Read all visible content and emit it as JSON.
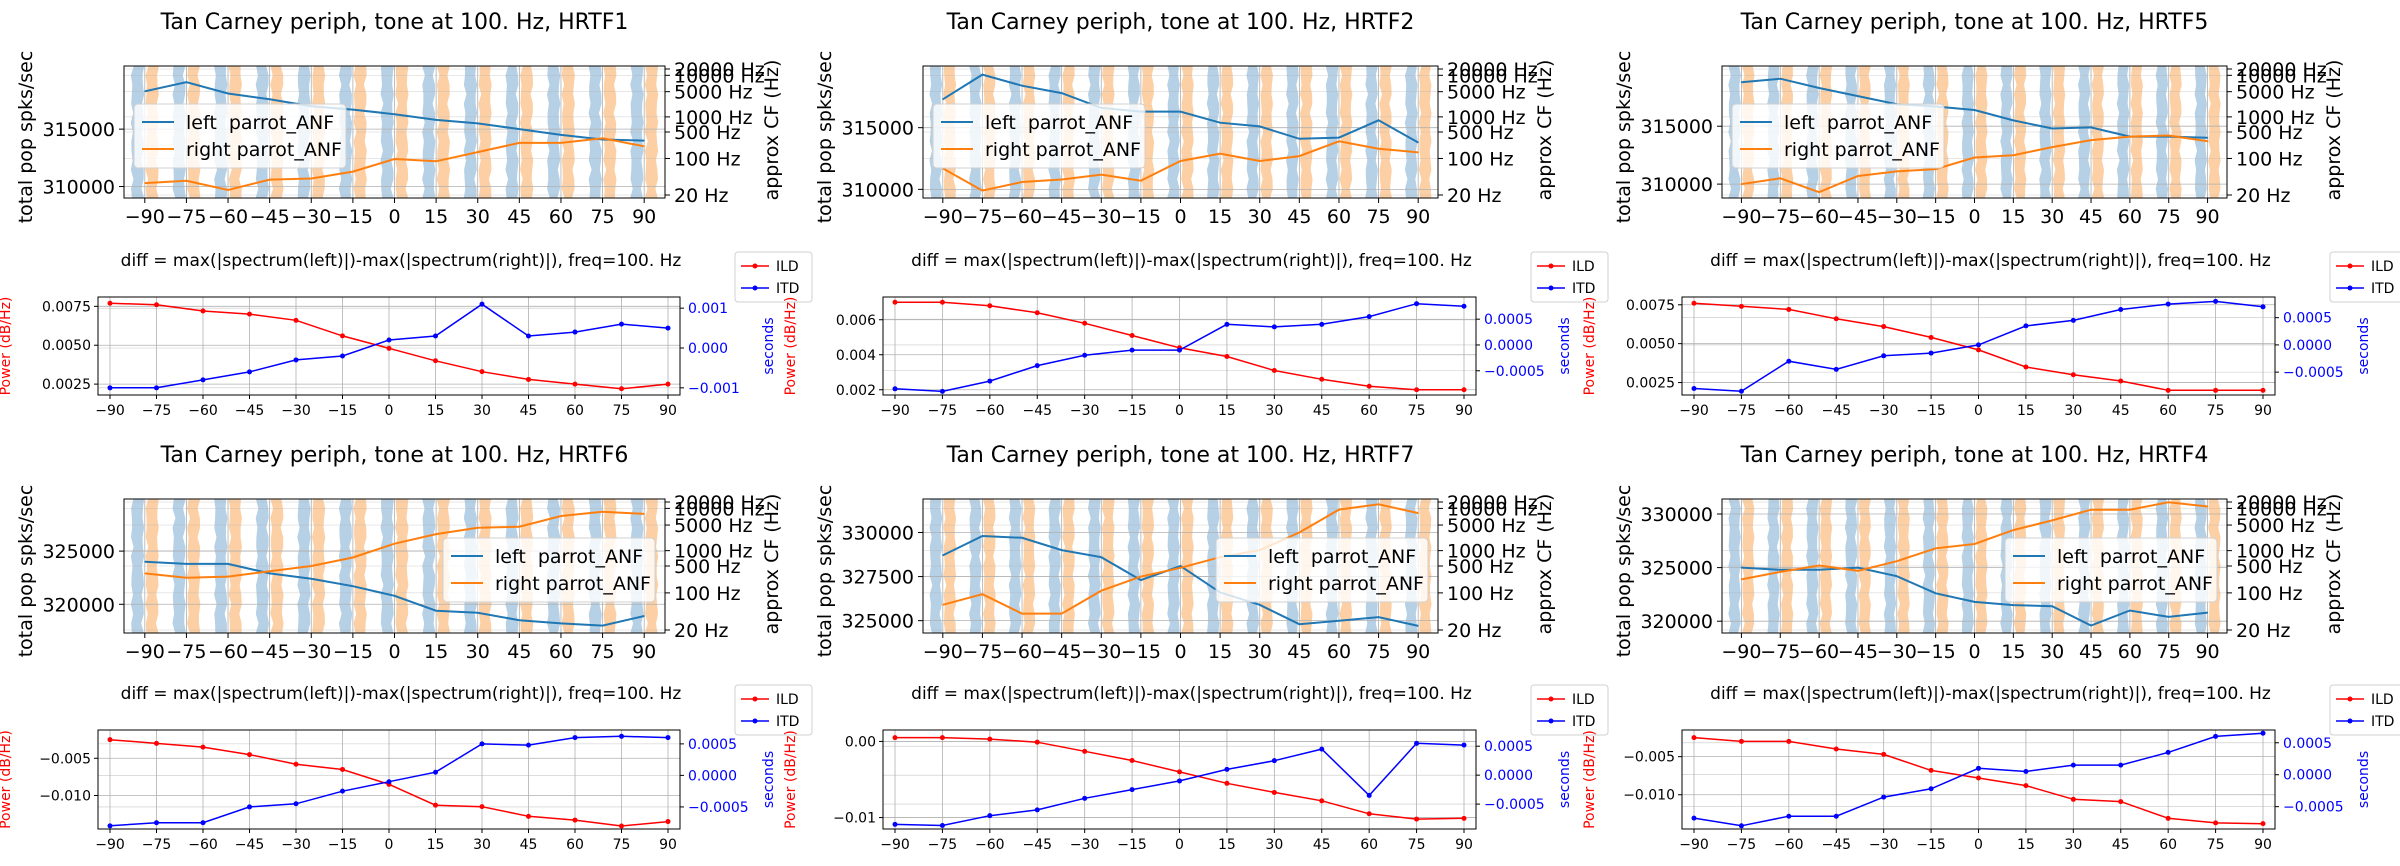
{
  "figure": {
    "top_title_suffix": "",
    "diff_title": "diff = max(|spectrum(left)|)-max(|spectrum(right)|), freq=100. Hz"
  },
  "colors": {
    "left": "#1f77b4",
    "right": "#ff7f0e",
    "ild": "#ff0000",
    "itd": "#0000ff",
    "violin_left": "#a9c8e0",
    "violin_right": "#fcc894",
    "grid": "#b0b0b0"
  },
  "chart_data": [
    {
      "type": "line",
      "title": "Tan Carney periph, tone at 100. Hz, HRTF1",
      "ylabel": "total pop spks/sec",
      "y2label": "approx CF (Hz)",
      "x": [
        -90,
        -75,
        -60,
        -45,
        -30,
        -15,
        0,
        15,
        30,
        45,
        60,
        75,
        90
      ],
      "ylim": [
        309000,
        320500
      ],
      "yticks": [
        310000,
        315000
      ],
      "y2ticks": [
        "20000 Hz",
        "10000 Hz",
        "5000 Hz",
        "1000 Hz",
        "500 Hz",
        "100 Hz",
        "20 Hz"
      ],
      "legend": "center-left",
      "series": [
        {
          "name": "left  parrot_ANF",
          "values": [
            318300,
            319100,
            318100,
            317600,
            317000,
            316700,
            316300,
            315800,
            315500,
            315000,
            314500,
            314100,
            314000
          ]
        },
        {
          "name": "right parrot_ANF",
          "values": [
            310300,
            310500,
            309700,
            310600,
            310700,
            311300,
            312400,
            312200,
            313000,
            313800,
            313800,
            314200,
            313500
          ]
        }
      ]
    },
    {
      "type": "line",
      "title": "diff = max(|spectrum(left)|)-max(|spectrum(right)|), freq=100. Hz",
      "ylabel": "Power (dB/Hz)",
      "y2label": "seconds",
      "x": [
        -90,
        -75,
        -60,
        -45,
        -30,
        -15,
        0,
        15,
        30,
        45,
        60,
        75,
        90
      ],
      "ylim": [
        0.0018,
        0.0081
      ],
      "yticks": [
        0.0025,
        0.005,
        0.0075
      ],
      "ytick_labels": [
        "0.0025",
        "0.0050",
        "0.0075"
      ],
      "y2lim": [
        -0.00118,
        0.00128
      ],
      "y2ticks": [
        -0.001,
        0,
        0.001
      ],
      "y2tick_labels": [
        "-0.001",
        "0.000",
        "0.001"
      ],
      "legend": "outside-right",
      "series": [
        {
          "name": "ILD",
          "values": [
            0.0077,
            0.0076,
            0.0072,
            0.007,
            0.0066,
            0.0056,
            0.0048,
            0.004,
            0.0033,
            0.0028,
            0.0025,
            0.0022,
            0.0025
          ]
        },
        {
          "name": "ITD",
          "values": [
            -0.001,
            -0.001,
            -0.0008,
            -0.0006,
            -0.0003,
            -0.0002,
            0.0002,
            0.0003,
            0.0011,
            0.0003,
            0.0004,
            0.0006,
            0.0005
          ]
        }
      ]
    },
    {
      "type": "line",
      "title": "Tan Carney periph, tone at 100. Hz, HRTF2",
      "ylabel": "total pop spks/sec",
      "y2label": "approx CF (Hz)",
      "x": [
        -90,
        -75,
        -60,
        -45,
        -30,
        -15,
        0,
        15,
        30,
        45,
        60,
        75,
        90
      ],
      "ylim": [
        309300,
        320000
      ],
      "yticks": [
        310000,
        315000
      ],
      "y2ticks": [
        "20000 Hz",
        "10000 Hz",
        "5000 Hz",
        "1000 Hz",
        "500 Hz",
        "100 Hz",
        "20 Hz"
      ],
      "legend": "center-left",
      "series": [
        {
          "name": "left  parrot_ANF",
          "values": [
            317300,
            319300,
            318400,
            317800,
            316600,
            316300,
            316300,
            315400,
            315100,
            314100,
            314200,
            315600,
            313800
          ]
        },
        {
          "name": "right parrot_ANF",
          "values": [
            311700,
            309900,
            310600,
            310800,
            311200,
            310700,
            312300,
            312900,
            312300,
            312700,
            313900,
            313300,
            313000
          ]
        }
      ]
    },
    {
      "type": "line",
      "title": "diff = max(|spectrum(left)|)-max(|spectrum(right)|), freq=100. Hz",
      "ylabel": "Power (dB/Hz)",
      "y2label": "seconds",
      "x": [
        -90,
        -75,
        -60,
        -45,
        -30,
        -15,
        0,
        15,
        30,
        45,
        60,
        75,
        90
      ],
      "ylim": [
        0.0017,
        0.0073
      ],
      "yticks": [
        0.002,
        0.004,
        0.006
      ],
      "ytick_labels": [
        "0.002",
        "0.004",
        "0.006"
      ],
      "y2lim": [
        -0.00097,
        0.00093
      ],
      "y2ticks": [
        -0.0005,
        0,
        0.0005
      ],
      "y2tick_labels": [
        "-0.0005",
        "0.0000",
        "0.0005"
      ],
      "legend": "outside-right",
      "series": [
        {
          "name": "ILD",
          "values": [
            0.007,
            0.007,
            0.0068,
            0.0064,
            0.0058,
            0.0051,
            0.0044,
            0.0039,
            0.0031,
            0.0026,
            0.0022,
            0.002,
            0.002
          ]
        },
        {
          "name": "ITD",
          "values": [
            -0.00085,
            -0.0009,
            -0.0007,
            -0.0004,
            -0.0002,
            -0.0001,
            -0.0001,
            0.0004,
            0.00035,
            0.0004,
            0.00055,
            0.0008,
            0.00075
          ]
        }
      ]
    },
    {
      "type": "line",
      "title": "Tan Carney periph, tone at 100. Hz, HRTF5",
      "ylabel": "total pop spks/sec",
      "y2label": "approx CF (Hz)",
      "x": [
        -90,
        -75,
        -60,
        -45,
        -30,
        -15,
        0,
        15,
        30,
        45,
        60,
        75,
        90
      ],
      "ylim": [
        308800,
        320200
      ],
      "yticks": [
        310000,
        315000
      ],
      "y2ticks": [
        "20000 Hz",
        "10000 Hz",
        "5000 Hz",
        "1000 Hz",
        "500 Hz",
        "100 Hz",
        "20 Hz"
      ],
      "legend": "center-left",
      "series": [
        {
          "name": "left  parrot_ANF",
          "values": [
            318800,
            319100,
            318300,
            317600,
            316900,
            316700,
            316400,
            315500,
            314800,
            314900,
            314100,
            314100,
            314000
          ]
        },
        {
          "name": "right parrot_ANF",
          "values": [
            310000,
            310500,
            309300,
            310700,
            311100,
            311300,
            312300,
            312500,
            313200,
            313800,
            314100,
            314200,
            313700
          ]
        }
      ]
    },
    {
      "type": "line",
      "title": "diff = max(|spectrum(left)|)-max(|spectrum(right)|), freq=100. Hz",
      "ylabel": "Power (dB/Hz)",
      "y2label": "seconds",
      "x": [
        -90,
        -75,
        -60,
        -45,
        -30,
        -15,
        0,
        15,
        30,
        45,
        60,
        75,
        90
      ],
      "ylim": [
        0.0017,
        0.008
      ],
      "yticks": [
        0.0025,
        0.005,
        0.0075
      ],
      "ytick_labels": [
        "0.0025",
        "0.0050",
        "0.0075"
      ],
      "y2lim": [
        -0.00092,
        0.00088
      ],
      "y2ticks": [
        -0.0005,
        0,
        0.0005
      ],
      "y2tick_labels": [
        "-0.0005",
        "0.0000",
        "0.0005"
      ],
      "legend": "outside-right",
      "series": [
        {
          "name": "ILD",
          "values": [
            0.0076,
            0.0074,
            0.0072,
            0.0066,
            0.0061,
            0.0054,
            0.0046,
            0.0035,
            0.003,
            0.0026,
            0.002,
            0.002,
            0.002
          ]
        },
        {
          "name": "ITD",
          "values": [
            -0.0008,
            -0.00085,
            -0.0003,
            -0.00045,
            -0.0002,
            -0.00015,
            0.0,
            0.00035,
            0.00045,
            0.00065,
            0.00075,
            0.0008,
            0.0007
          ]
        }
      ]
    },
    {
      "type": "line",
      "title": "Tan Carney periph, tone at 100. Hz, HRTF6",
      "ylabel": "total pop spks/sec",
      "y2label": "approx CF (Hz)",
      "x": [
        -90,
        -75,
        -60,
        -45,
        -30,
        -15,
        0,
        15,
        30,
        45,
        60,
        75,
        90
      ],
      "ylim": [
        317300,
        329900
      ],
      "yticks": [
        320000,
        325000
      ],
      "y2ticks": [
        "20000 Hz",
        "10000 Hz",
        "5000 Hz",
        "1000 Hz",
        "500 Hz",
        "100 Hz",
        "20 Hz"
      ],
      "legend": "center-right",
      "series": [
        {
          "name": "left  parrot_ANF",
          "values": [
            324000,
            323800,
            323800,
            322900,
            322400,
            321700,
            320800,
            319400,
            319200,
            318500,
            318200,
            318000,
            318900
          ]
        },
        {
          "name": "right parrot_ANF",
          "values": [
            322900,
            322500,
            322600,
            323100,
            323600,
            324400,
            325700,
            326600,
            327200,
            327300,
            328300,
            328700,
            328500
          ]
        }
      ]
    },
    {
      "type": "line",
      "title": "diff = max(|spectrum(left)|)-max(|spectrum(right)|), freq=100. Hz",
      "ylabel": "Power (dB/Hz)",
      "y2label": "seconds",
      "x": [
        -90,
        -75,
        -60,
        -45,
        -30,
        -15,
        0,
        15,
        30,
        45,
        60,
        75,
        90
      ],
      "ylim": [
        -0.0145,
        -0.0012
      ],
      "yticks": [
        -0.01,
        -0.005
      ],
      "ytick_labels": [
        "-0.010",
        "-0.005"
      ],
      "y2lim": [
        -0.00085,
        0.00072
      ],
      "y2ticks": [
        -0.0005,
        0,
        0.0005
      ],
      "y2tick_labels": [
        "-0.0005",
        "0.0000",
        "0.0005"
      ],
      "legend": "outside-right",
      "series": [
        {
          "name": "ILD",
          "values": [
            -0.0025,
            -0.003,
            -0.0035,
            -0.0045,
            -0.0058,
            -0.0065,
            -0.0085,
            -0.0113,
            -0.0115,
            -0.0128,
            -0.0133,
            -0.0141,
            -0.0135
          ]
        },
        {
          "name": "ITD",
          "values": [
            -0.0008,
            -0.00075,
            -0.00075,
            -0.0005,
            -0.00045,
            -0.00025,
            -0.0001,
            5e-05,
            0.0005,
            0.00048,
            0.0006,
            0.00062,
            0.0006
          ]
        }
      ]
    },
    {
      "type": "line",
      "title": "Tan Carney periph, tone at 100. Hz, HRTF7",
      "ylabel": "total pop spks/sec",
      "y2label": "approx CF (Hz)",
      "x": [
        -90,
        -75,
        -60,
        -45,
        -30,
        -15,
        0,
        15,
        30,
        45,
        60,
        75,
        90
      ],
      "ylim": [
        324300,
        331900
      ],
      "yticks": [
        325000,
        327500,
        330000
      ],
      "y2ticks": [
        "20000 Hz",
        "10000 Hz",
        "5000 Hz",
        "1000 Hz",
        "500 Hz",
        "100 Hz",
        "20 Hz"
      ],
      "legend": "center-right",
      "series": [
        {
          "name": "left  parrot_ANF",
          "values": [
            328700,
            329800,
            329700,
            329000,
            328600,
            327300,
            328100,
            326600,
            325900,
            324800,
            325000,
            325200,
            324700
          ]
        },
        {
          "name": "right parrot_ANF",
          "values": [
            325900,
            326500,
            325400,
            325400,
            326700,
            327500,
            328000,
            328600,
            329000,
            330000,
            331300,
            331600,
            331100
          ]
        }
      ]
    },
    {
      "type": "line",
      "title": "diff = max(|spectrum(left)|)-max(|spectrum(right)|), freq=100. Hz",
      "ylabel": "Power (dB/Hz)",
      "y2label": "seconds",
      "x": [
        -90,
        -75,
        -60,
        -45,
        -30,
        -15,
        0,
        15,
        30,
        45,
        60,
        75,
        90
      ],
      "ylim": [
        -0.0115,
        0.0015
      ],
      "yticks": [
        -0.01,
        0
      ],
      "ytick_labels": [
        "-0.01",
        "0.00"
      ],
      "y2lim": [
        -0.00093,
        0.00078
      ],
      "y2ticks": [
        -0.0005,
        0,
        0.0005
      ],
      "y2tick_labels": [
        "-0.0005",
        "0.0000",
        "0.0005"
      ],
      "legend": "outside-right",
      "series": [
        {
          "name": "ILD",
          "values": [
            0.0005,
            0.0005,
            0.0003,
            -0.0001,
            -0.0013,
            -0.0025,
            -0.004,
            -0.0055,
            -0.0067,
            -0.0078,
            -0.0095,
            -0.0102,
            -0.0101
          ]
        },
        {
          "name": "ITD",
          "values": [
            -0.00085,
            -0.00087,
            -0.0007,
            -0.0006,
            -0.0004,
            -0.00025,
            -0.0001,
            0.0001,
            0.00025,
            0.00045,
            -0.00035,
            0.00055,
            0.00052
          ]
        }
      ]
    },
    {
      "type": "line",
      "title": "Tan Carney periph, tone at 100. Hz, HRTF4",
      "ylabel": "total pop spks/sec",
      "y2label": "approx CF (Hz)",
      "x": [
        -90,
        -75,
        -60,
        -45,
        -30,
        -15,
        0,
        15,
        30,
        45,
        60,
        75,
        90
      ],
      "ylim": [
        318900,
        331400
      ],
      "yticks": [
        320000,
        325000,
        330000
      ],
      "y2ticks": [
        "20000 Hz",
        "10000 Hz",
        "5000 Hz",
        "1000 Hz",
        "500 Hz",
        "100 Hz",
        "20 Hz"
      ],
      "legend": "center-right",
      "series": [
        {
          "name": "left  parrot_ANF",
          "values": [
            325000,
            324800,
            324800,
            325000,
            324200,
            322600,
            321800,
            321500,
            321400,
            319600,
            321000,
            320400,
            320800
          ]
        },
        {
          "name": "right parrot_ANF",
          "values": [
            323900,
            324600,
            325200,
            324700,
            325600,
            326800,
            327200,
            328500,
            329400,
            330400,
            330400,
            331100,
            330700
          ]
        }
      ]
    },
    {
      "type": "line",
      "title": "diff = max(|spectrum(left)|)-max(|spectrum(right)|), freq=100. Hz",
      "ylabel": "Power (dB/Hz)",
      "y2label": "seconds",
      "x": [
        -90,
        -75,
        -60,
        -45,
        -30,
        -15,
        0,
        15,
        30,
        45,
        60,
        75,
        90
      ],
      "ylim": [
        -0.0145,
        -0.0015
      ],
      "yticks": [
        -0.01,
        -0.005
      ],
      "ytick_labels": [
        "-0.010",
        "-0.005"
      ],
      "y2lim": [
        -0.00085,
        0.0007
      ],
      "y2ticks": [
        -0.0005,
        0,
        0.0005
      ],
      "y2tick_labels": [
        "-0.0005",
        "0.0000",
        "0.0005"
      ],
      "legend": "outside-right",
      "series": [
        {
          "name": "ILD",
          "values": [
            -0.0025,
            -0.003,
            -0.003,
            -0.004,
            -0.0047,
            -0.0068,
            -0.0078,
            -0.0088,
            -0.0106,
            -0.0109,
            -0.0131,
            -0.0137,
            -0.0138
          ]
        },
        {
          "name": "ITD",
          "values": [
            -0.00068,
            -0.0008,
            -0.00065,
            -0.00065,
            -0.00035,
            -0.00022,
            0.0001,
            5e-05,
            0.00015,
            0.00015,
            0.00035,
            0.0006,
            0.00065
          ]
        }
      ]
    }
  ]
}
